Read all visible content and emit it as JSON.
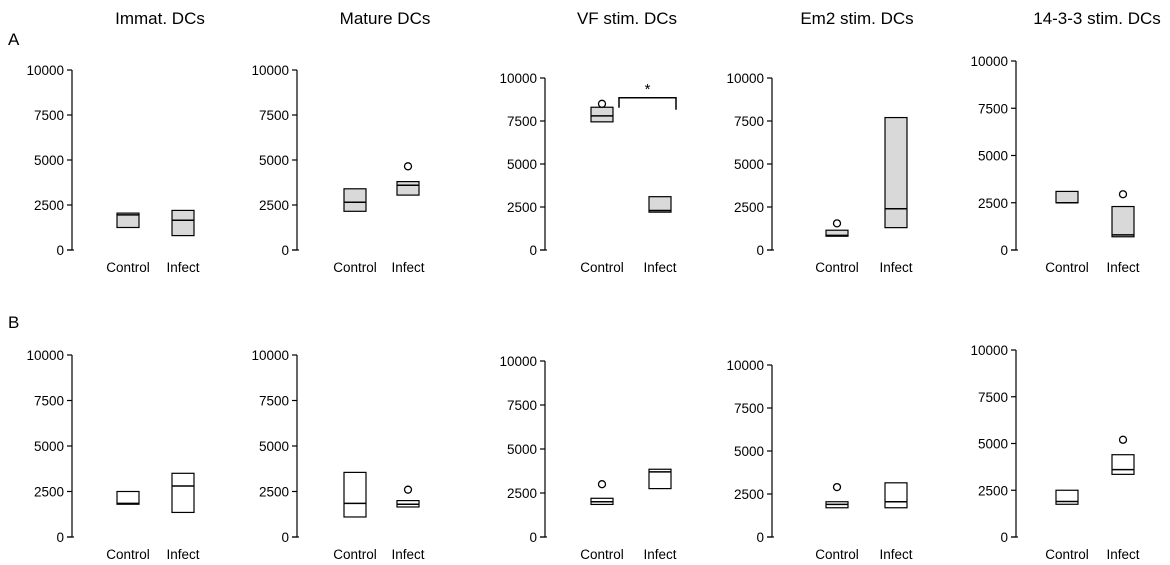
{
  "figure": {
    "column_titles": [
      "Immat. DCs",
      "Mature DCs",
      "VF stim. DCs",
      "Em2 stim. DCs",
      "14-3-3 stim. DCs"
    ],
    "row_labels": [
      "A",
      "B"
    ],
    "categories": [
      "Control",
      "Infect"
    ],
    "y_ticks": [
      "0",
      "2500",
      "5000",
      "7500",
      "10000"
    ],
    "significance_label": "*",
    "colors": {
      "filled_box": "#d9d9d9",
      "open_box": "#ffffff",
      "stroke": "#000000"
    }
  },
  "chart_data": [
    {
      "type": "box",
      "row": "A",
      "title": "Immat. DCs",
      "filled": true,
      "ylim": [
        0,
        10000
      ],
      "categories": [
        "Control",
        "Infect"
      ],
      "boxes": [
        {
          "q1": 1250,
          "median": 1950,
          "q3": 2050,
          "outliers": []
        },
        {
          "q1": 800,
          "median": 1650,
          "q3": 2200,
          "outliers": []
        }
      ]
    },
    {
      "type": "box",
      "row": "A",
      "title": "Mature DCs",
      "filled": true,
      "ylim": [
        0,
        10000
      ],
      "categories": [
        "Control",
        "Infect"
      ],
      "boxes": [
        {
          "q1": 2150,
          "median": 2650,
          "q3": 3400,
          "outliers": []
        },
        {
          "q1": 3050,
          "median": 3600,
          "q3": 3800,
          "outliers": [
            4650
          ]
        }
      ]
    },
    {
      "type": "box",
      "row": "A",
      "title": "VF stim. DCs",
      "filled": true,
      "ylim": [
        0,
        10000
      ],
      "categories": [
        "Control",
        "Infect"
      ],
      "boxes": [
        {
          "q1": 7450,
          "median": 7800,
          "q3": 8300,
          "outliers": [
            8500
          ]
        },
        {
          "q1": 2200,
          "median": 2300,
          "q3": 3100,
          "outliers": []
        }
      ],
      "significance": {
        "label": "*",
        "between": [
          "Control",
          "Infect"
        ]
      }
    },
    {
      "type": "box",
      "row": "A",
      "title": "Em2 stim. DCs",
      "filled": true,
      "ylim": [
        0,
        10000
      ],
      "categories": [
        "Control",
        "Infect"
      ],
      "boxes": [
        {
          "q1": 800,
          "median": 850,
          "q3": 1150,
          "outliers": [
            1550
          ]
        },
        {
          "q1": 1300,
          "median": 2400,
          "q3": 7700,
          "outliers": []
        }
      ]
    },
    {
      "type": "box",
      "row": "A",
      "title": "14-3-3 stim. DCs",
      "filled": true,
      "ylim": [
        0,
        10000
      ],
      "categories": [
        "Control",
        "Infect"
      ],
      "boxes": [
        {
          "q1": 2500,
          "median": 2500,
          "q3": 3100,
          "outliers": []
        },
        {
          "q1": 700,
          "median": 800,
          "q3": 2300,
          "outliers": [
            2950
          ]
        }
      ]
    },
    {
      "type": "box",
      "row": "B",
      "title": "Immat. DCs",
      "filled": false,
      "ylim": [
        0,
        10000
      ],
      "categories": [
        "Control",
        "Infect"
      ],
      "boxes": [
        {
          "q1": 1800,
          "median": 1850,
          "q3": 2500,
          "outliers": []
        },
        {
          "q1": 1350,
          "median": 2800,
          "q3": 3500,
          "outliers": []
        }
      ]
    },
    {
      "type": "box",
      "row": "B",
      "title": "Mature DCs",
      "filled": false,
      "ylim": [
        0,
        10000
      ],
      "categories": [
        "Control",
        "Infect"
      ],
      "boxes": [
        {
          "q1": 1100,
          "median": 1850,
          "q3": 3550,
          "outliers": []
        },
        {
          "q1": 1650,
          "median": 1800,
          "q3": 2000,
          "outliers": [
            2600
          ]
        }
      ]
    },
    {
      "type": "box",
      "row": "B",
      "title": "VF stim. DCs",
      "filled": false,
      "ylim": [
        0,
        10000
      ],
      "categories": [
        "Control",
        "Infect"
      ],
      "boxes": [
        {
          "q1": 1850,
          "median": 2000,
          "q3": 2200,
          "outliers": [
            3000
          ]
        },
        {
          "q1": 2750,
          "median": 3700,
          "q3": 3850,
          "outliers": []
        }
      ]
    },
    {
      "type": "box",
      "row": "B",
      "title": "Em2 stim. DCs",
      "filled": false,
      "ylim": [
        0,
        10000
      ],
      "categories": [
        "Control",
        "Infect"
      ],
      "boxes": [
        {
          "q1": 1700,
          "median": 1900,
          "q3": 2050,
          "outliers": [
            2900
          ]
        },
        {
          "q1": 1700,
          "median": 2050,
          "q3": 3150,
          "outliers": []
        }
      ]
    },
    {
      "type": "box",
      "row": "B",
      "title": "14-3-3 stim. DCs",
      "filled": false,
      "ylim": [
        0,
        10000
      ],
      "categories": [
        "Control",
        "Infect"
      ],
      "boxes": [
        {
          "q1": 1750,
          "median": 1900,
          "q3": 2500,
          "outliers": []
        },
        {
          "q1": 3350,
          "median": 3600,
          "q3": 4400,
          "outliers": [
            5200
          ]
        }
      ]
    }
  ]
}
